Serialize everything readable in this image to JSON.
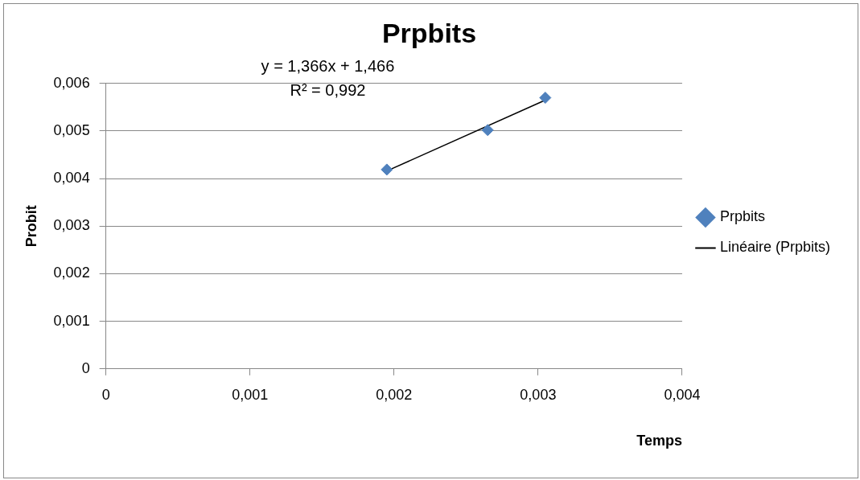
{
  "chart_data": {
    "type": "scatter",
    "title": "Prpbits",
    "xlabel": "Temps",
    "ylabel": "Probit",
    "xlim": [
      0,
      0.004
    ],
    "xticks": [
      0,
      {
        "value": 0.001,
        "label": "0,001"
      },
      {
        "value": 0.002,
        "label": "0,002"
      },
      {
        "value": 0.003,
        "label": "0,003"
      },
      {
        "value": 0.004,
        "label": "0,004"
      }
    ],
    "ylim": [
      0,
      0.006
    ],
    "yticks": [
      0,
      {
        "value": 0.001,
        "label": "0,001"
      },
      {
        "value": 0.002,
        "label": "0,002"
      },
      {
        "value": 0.003,
        "label": "0,003"
      },
      {
        "value": 0.004,
        "label": "0,004"
      },
      {
        "value": 0.005,
        "label": "0,005"
      },
      {
        "value": 0.006,
        "label": "0,006"
      }
    ],
    "grid": "y",
    "legend": "right",
    "series": [
      {
        "name": "Prpbits",
        "color": "#4f81bd",
        "marker": "diamond",
        "x": [
          0.00195,
          0.00265,
          0.00305
        ],
        "values": [
          0.00419,
          0.00502,
          0.0057
        ]
      },
      {
        "name": "Linéaire (Prpbits)",
        "type": "line",
        "color": "#000000",
        "marker": "none",
        "line_style": "solid",
        "x": [
          0.00195,
          0.00305
        ],
        "values": [
          0.00416,
          0.00565
        ]
      }
    ],
    "annotations": [
      "y = 1,366x + 1,466",
      "R² = 0,992"
    ]
  }
}
